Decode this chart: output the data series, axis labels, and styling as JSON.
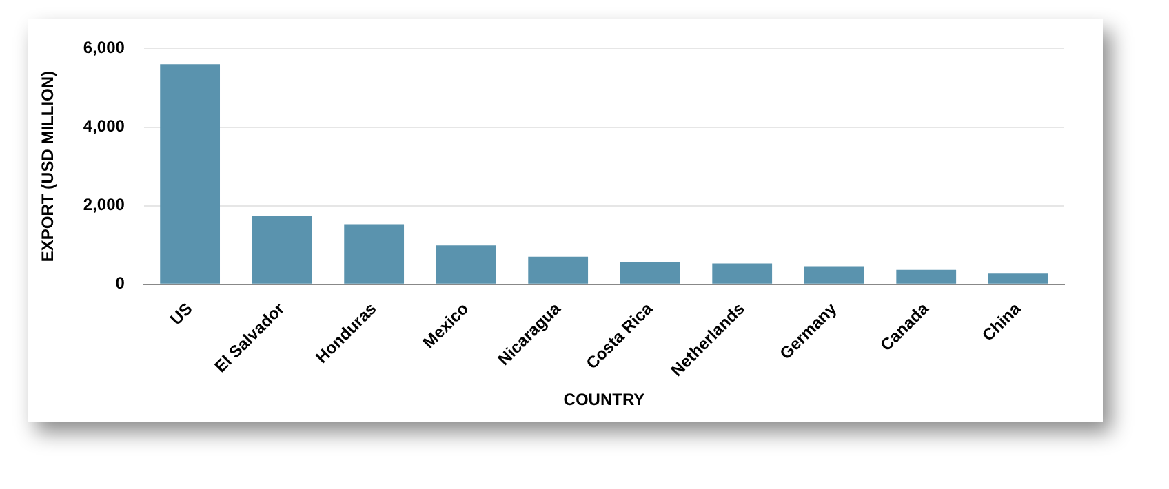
{
  "chart_data": {
    "type": "bar",
    "xlabel": "COUNTRY",
    "ylabel": "EXPORT (USD MILLION)",
    "categories": [
      "US",
      "El Salvador",
      "Honduras",
      "Mexico",
      "Nicaragua",
      "Costa Rica",
      "Netherlands",
      "Germany",
      "Canada",
      "China"
    ],
    "values": [
      5600,
      1750,
      1530,
      990,
      700,
      570,
      530,
      460,
      370,
      270
    ],
    "color": "#5a93ae",
    "ylim": [
      0,
      6000
    ],
    "yticks": [
      {
        "value": 0,
        "label": "0"
      },
      {
        "value": 2000,
        "label": "2,000"
      },
      {
        "value": 4000,
        "label": "4,000"
      },
      {
        "value": 6000,
        "label": "6,000"
      }
    ],
    "grid": "y",
    "legend": false
  }
}
